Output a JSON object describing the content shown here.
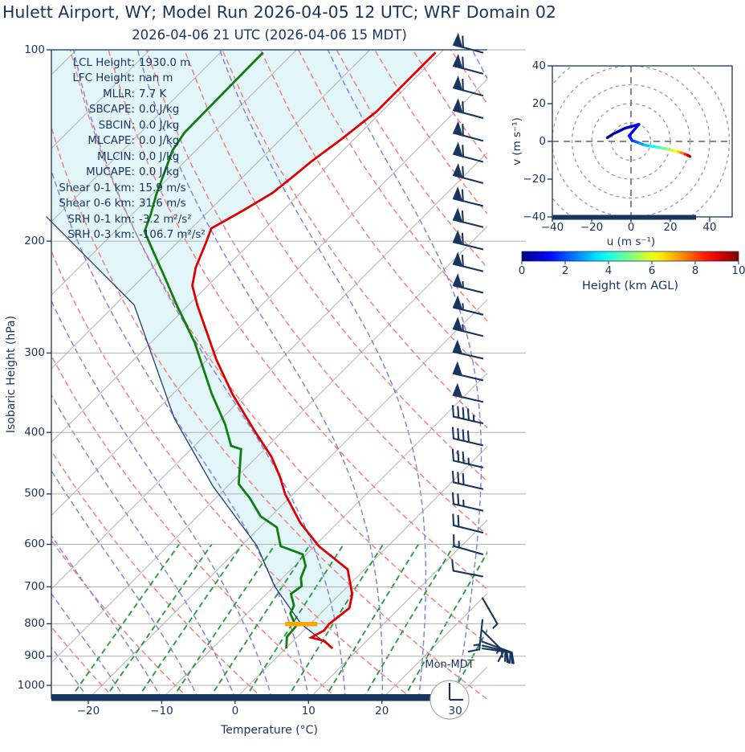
{
  "title": "Hulett Airport, WY; Model Run 2026-04-05 12 UTC; WRF Domain 02",
  "subtitle": "2026-04-06 21 UTC  (2026-04-06 15 MDT)",
  "colors": {
    "text_and_spines": "#17355e",
    "temperature_line": "#de0000",
    "dewpoint_line": "#0c7f0c",
    "parcel_line": "#1d3f6e",
    "isotherms": "#b6b6b6",
    "dry_adiabats": "#f28080",
    "moist_adiabats": "#8585de",
    "mixing_ratio_lines": "#2a9d3f",
    "grid": "#b0b0b0",
    "cin_shading": "#e2f5f8",
    "lcl_marker": "#ffa500",
    "wind_barbs": "#17355e",
    "clock_ring": "#aaaaaa"
  },
  "skewt": {
    "xlabel": "Temperature (°C)",
    "ylabel": "Isobaric Height (hPa)",
    "x_ticks": [
      -20,
      -10,
      0,
      10,
      20,
      30
    ],
    "x_tick_labels": [
      "−20",
      "−10",
      "0",
      "10",
      "20",
      "30"
    ],
    "y_ticks": [
      100,
      200,
      300,
      400,
      500,
      600,
      700,
      800,
      900,
      1000
    ],
    "y_tick_labels": [
      "100",
      "200",
      "300",
      "400",
      "500",
      "600",
      "700",
      "800",
      "900",
      "1000"
    ],
    "watermark": "Mon-MDT",
    "clock_time": "15:00",
    "stats": [
      {
        "label": "LCL Height:",
        "value": "1930.0 m"
      },
      {
        "label": "LFC Height:",
        "value": "nan m"
      },
      {
        "label": "MLLR:",
        "value": "7.7 K"
      },
      {
        "label": "SBCAPE:",
        "value": "0.0 J/kg"
      },
      {
        "label": "SBCIN:",
        "value": "0.0 J/kg"
      },
      {
        "label": "MLCAPE:",
        "value": "0.0 J/kg"
      },
      {
        "label": "MLCIN:",
        "value": "0.0 J/kg"
      },
      {
        "label": "MUCAPE:",
        "value": "0.0 J/kg"
      },
      {
        "label": "Shear 0-1 km:",
        "value": "15.9 m/s"
      },
      {
        "label": "Shear 0-6 km:",
        "value": "31.6 m/s"
      },
      {
        "label": "SRH 0-1 km:",
        "value": "-3.2 m²/s²"
      },
      {
        "label": "SRH 0-3 km:",
        "value": "-106.7 m²/s²"
      }
    ]
  },
  "hodograph": {
    "xlabel": "u (m s⁻¹)",
    "ylabel": "v (m s⁻¹)",
    "ticks": [
      -40,
      -20,
      0,
      20,
      40
    ],
    "x_tick_labels": [
      "−40",
      "−20",
      "0",
      "20",
      "40"
    ],
    "y_tick_labels": [
      "−40",
      "−20",
      "0",
      "20",
      "40"
    ],
    "rings": [
      10,
      20,
      30,
      40,
      50
    ]
  },
  "colorbar": {
    "label": "Height (km AGL)",
    "ticks": [
      0,
      2,
      4,
      6,
      8,
      10
    ],
    "tick_labels": [
      "0",
      "2",
      "4",
      "6",
      "8",
      "10"
    ],
    "range": [
      0,
      10
    ],
    "colormap": "jet"
  },
  "chart_data": {
    "type": "line",
    "subtype": "skew-t-log-p-sounding-with-hodograph",
    "pressure_range_hpa": [
      100,
      1050
    ],
    "temperature_axis_range_c": [
      -25,
      34.4
    ],
    "series": [
      {
        "name": "temperature",
        "units": "°C vs hPa",
        "points_p_t": [
          [
            101,
            -60.7
          ],
          [
            110,
            -60.7
          ],
          [
            125,
            -60.7
          ],
          [
            138,
            -61.7
          ],
          [
            150,
            -62.8
          ],
          [
            158,
            -63.2
          ],
          [
            168,
            -63.8
          ],
          [
            179,
            -65.4
          ],
          [
            191,
            -67.3
          ],
          [
            201,
            -66.1
          ],
          [
            220,
            -64.1
          ],
          [
            235,
            -62.1
          ],
          [
            252,
            -58.8
          ],
          [
            307,
            -48.8
          ],
          [
            348,
            -41.9
          ],
          [
            400,
            -33.5
          ],
          [
            437,
            -28.0
          ],
          [
            471,
            -24.0
          ],
          [
            500,
            -21.1
          ],
          [
            555,
            -15.1
          ],
          [
            604,
            -9.4
          ],
          [
            657,
            -2.3
          ],
          [
            719,
            1.7
          ],
          [
            756,
            3.2
          ],
          [
            801,
            2.6
          ],
          [
            820,
            2.8
          ],
          [
            841,
            2.0
          ],
          [
            851,
            4.2
          ],
          [
            875,
            6.4
          ]
        ]
      },
      {
        "name": "dewpoint",
        "units": "°C vs hPa",
        "points_p_t": [
          [
            101,
            -84.2
          ],
          [
            135,
            -84.0
          ],
          [
            144,
            -83.2
          ],
          [
            156,
            -81.3
          ],
          [
            169,
            -79.4
          ],
          [
            182,
            -77.4
          ],
          [
            193,
            -76.0
          ],
          [
            206,
            -72.5
          ],
          [
            228,
            -67.0
          ],
          [
            252,
            -61.6
          ],
          [
            289,
            -54.0
          ],
          [
            348,
            -44.7
          ],
          [
            388,
            -38.8
          ],
          [
            420,
            -35.0
          ],
          [
            425,
            -33.2
          ],
          [
            482,
            -28.8
          ],
          [
            493,
            -27.3
          ],
          [
            507,
            -25.4
          ],
          [
            542,
            -21.4
          ],
          [
            564,
            -17.7
          ],
          [
            604,
            -14.6
          ],
          [
            622,
            -10.5
          ],
          [
            649,
            -8.5
          ],
          [
            678,
            -7.5
          ],
          [
            698,
            -6.3
          ],
          [
            718,
            -6.7
          ],
          [
            749,
            -4.7
          ],
          [
            771,
            -4.1
          ],
          [
            808,
            -1.6
          ],
          [
            839,
            -1.4
          ],
          [
            875,
            0.1
          ]
        ]
      },
      {
        "name": "surface-parcel-profile",
        "units": "°C vs hPa",
        "points_p_t": [
          [
            183,
            -91.4
          ],
          [
            252,
            -67.4
          ],
          [
            380,
            -46.5
          ],
          [
            486,
            -32.0
          ],
          [
            604,
            -17.8
          ],
          [
            698,
            -10.0
          ],
          [
            801,
            -1.2
          ],
          [
            875,
            6.4
          ]
        ]
      }
    ],
    "lcl_marker": {
      "pressure_hpa": 801,
      "temperature_c": -1.2,
      "half_width_c": 2.2
    },
    "wind_barbs_p_dir_kt": [
      [
        101,
        285,
        60
      ],
      [
        109,
        285,
        60
      ],
      [
        118,
        285,
        60
      ],
      [
        128,
        285,
        60
      ],
      [
        139,
        285,
        60
      ],
      [
        150,
        285,
        60
      ],
      [
        162,
        285,
        60
      ],
      [
        176,
        284,
        60
      ],
      [
        190,
        284,
        60
      ],
      [
        206,
        284,
        58
      ],
      [
        223,
        284,
        58
      ],
      [
        241,
        284,
        55
      ],
      [
        261,
        284,
        55
      ],
      [
        282,
        284,
        55
      ],
      [
        306,
        283,
        52
      ],
      [
        331,
        283,
        50
      ],
      [
        358,
        283,
        48
      ],
      [
        387,
        283,
        45
      ],
      [
        419,
        283,
        40
      ],
      [
        454,
        283,
        35
      ],
      [
        491,
        283,
        32
      ],
      [
        531,
        283,
        26
      ],
      [
        575,
        284,
        20
      ],
      [
        622,
        286,
        14
      ],
      [
        674,
        281,
        8
      ],
      [
        729,
        150,
        5
      ],
      [
        789,
        186,
        15
      ],
      [
        820,
        135,
        16
      ],
      [
        854,
        110,
        20
      ],
      [
        866,
        103,
        22
      ],
      [
        875,
        98,
        24
      ]
    ],
    "hodograph_trace_km_u_v": [
      [
        0,
        -12,
        2
      ],
      [
        0.3,
        -9,
        4
      ],
      [
        0.7,
        -3,
        7
      ],
      [
        1,
        4,
        9
      ],
      [
        1.3,
        -1,
        3
      ],
      [
        1.6,
        0.5,
        0.5
      ],
      [
        2,
        2,
        0
      ],
      [
        2.5,
        4.5,
        -1
      ],
      [
        3,
        7,
        -2
      ],
      [
        3.5,
        10,
        -2.5
      ],
      [
        4,
        13,
        -3
      ],
      [
        4.5,
        15.5,
        -3.5
      ],
      [
        5,
        18,
        -4
      ],
      [
        5.5,
        20,
        -4.5
      ],
      [
        6,
        22,
        -5
      ],
      [
        6.5,
        24,
        -5.5
      ],
      [
        7,
        25.5,
        -6
      ],
      [
        8,
        27.5,
        -6.8
      ],
      [
        9,
        29,
        -7.4
      ],
      [
        10,
        30,
        -8
      ]
    ],
    "background_lines": {
      "isotherm_step_c": 10,
      "dry_adiabat_step_k": 10,
      "moist_adiabat_step_c": 5,
      "mixing_ratios_g_kg": [
        0.6,
        0.9,
        1.3,
        1.9,
        2.8,
        4,
        6,
        8.5,
        12,
        17,
        25,
        36
      ],
      "mixing_ratio_top_hpa": 600
    }
  }
}
